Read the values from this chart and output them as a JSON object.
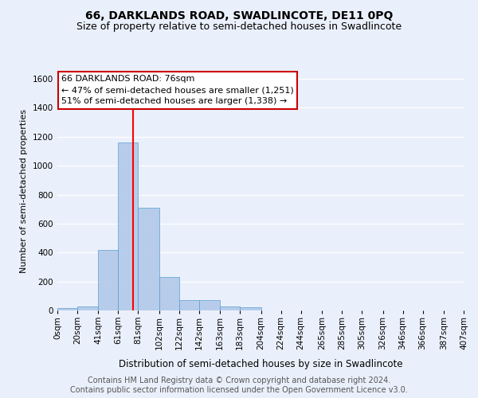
{
  "title": "66, DARKLANDS ROAD, SWADLINCOTE, DE11 0PQ",
  "subtitle": "Size of property relative to semi-detached houses in Swadlincote",
  "xlabel": "Distribution of semi-detached houses by size in Swadlincote",
  "ylabel": "Number of semi-detached properties",
  "footer_line1": "Contains HM Land Registry data © Crown copyright and database right 2024.",
  "footer_line2": "Contains public sector information licensed under the Open Government Licence v3.0.",
  "annotation_title": "66 DARKLANDS ROAD: 76sqm",
  "annotation_line1": "← 47% of semi-detached houses are smaller (1,251)",
  "annotation_line2": "51% of semi-detached houses are larger (1,338) →",
  "property_size_sqm": 76,
  "bin_edges": [
    0,
    20,
    41,
    61,
    81,
    102,
    122,
    142,
    163,
    183,
    204,
    224,
    244,
    265,
    285,
    305,
    326,
    346,
    366,
    387,
    407
  ],
  "bin_heights": [
    15,
    30,
    420,
    1160,
    710,
    230,
    70,
    70,
    30,
    20,
    0,
    0,
    0,
    0,
    0,
    0,
    0,
    0,
    0,
    0
  ],
  "bar_color": "#aec6e8",
  "bar_edgecolor": "#5a9fd4",
  "bar_alpha": 0.85,
  "redline_x": 76,
  "ylim": [
    0,
    1650
  ],
  "yticks": [
    0,
    200,
    400,
    600,
    800,
    1000,
    1200,
    1400,
    1600
  ],
  "bg_color": "#eaf0fb",
  "axes_bg_color": "#eaf0fb",
  "grid_color": "#ffffff",
  "annotation_box_facecolor": "#ffffff",
  "annotation_box_edgecolor": "#cc0000",
  "title_fontsize": 10,
  "subtitle_fontsize": 9,
  "xlabel_fontsize": 8.5,
  "ylabel_fontsize": 8,
  "tick_fontsize": 7.5,
  "annotation_fontsize": 8,
  "footer_fontsize": 7
}
